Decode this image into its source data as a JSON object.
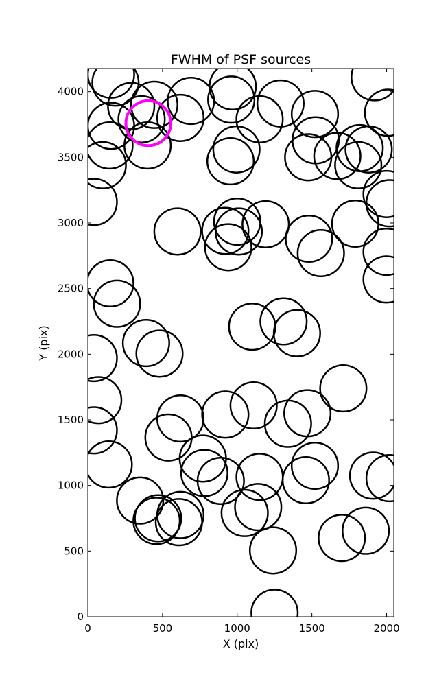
{
  "chart_data": {
    "type": "scatter",
    "title": "FWHM of PSF sources",
    "xlabel": "X (pix)",
    "ylabel": "Y (pix)",
    "xlim": [
      0,
      2048
    ],
    "ylim": [
      0,
      4176
    ],
    "xticks": [
      0,
      500,
      1000,
      1500,
      2000
    ],
    "yticks": [
      0,
      500,
      1000,
      1500,
      2000,
      2500,
      3000,
      3500,
      4000
    ],
    "grid": false,
    "marker": "open-circle",
    "circle_radius_pix": 155,
    "series": [
      {
        "name": "",
        "color": "#000000",
        "points": [
          [
            155,
            4130
          ],
          [
            185,
            4070
          ],
          [
            290,
            3890
          ],
          [
            445,
            3900
          ],
          [
            620,
            3800
          ],
          [
            690,
            3930
          ],
          [
            970,
            4040
          ],
          [
            960,
            3940
          ],
          [
            1150,
            3790
          ],
          [
            1290,
            3910
          ],
          [
            1520,
            3830
          ],
          [
            1525,
            3630
          ],
          [
            1475,
            3500
          ],
          [
            1670,
            3510
          ],
          [
            1820,
            3570
          ],
          [
            1880,
            3560
          ],
          [
            1810,
            3440
          ],
          [
            1920,
            4110
          ],
          [
            2010,
            3840
          ],
          [
            155,
            3740
          ],
          [
            145,
            3590
          ],
          [
            100,
            3440
          ],
          [
            360,
            3790
          ],
          [
            400,
            3590
          ],
          [
            995,
            3560
          ],
          [
            955,
            3470
          ],
          [
            40,
            3160
          ],
          [
            2000,
            3220
          ],
          [
            2020,
            3150
          ],
          [
            600,
            2935
          ],
          [
            920,
            2940
          ],
          [
            1000,
            3010
          ],
          [
            1010,
            2935
          ],
          [
            940,
            2815
          ],
          [
            1190,
            2990
          ],
          [
            1480,
            2880
          ],
          [
            1560,
            2770
          ],
          [
            1790,
            2995
          ],
          [
            2000,
            2780
          ],
          [
            2000,
            2570
          ],
          [
            150,
            2540
          ],
          [
            195,
            2385
          ],
          [
            1100,
            2210
          ],
          [
            1310,
            2250
          ],
          [
            1400,
            2160
          ],
          [
            390,
            2085
          ],
          [
            480,
            2005
          ],
          [
            40,
            1970
          ],
          [
            70,
            1650
          ],
          [
            1710,
            1740
          ],
          [
            920,
            1540
          ],
          [
            1110,
            1610
          ],
          [
            620,
            1510
          ],
          [
            540,
            1365
          ],
          [
            1340,
            1470
          ],
          [
            1470,
            1550
          ],
          [
            40,
            1420
          ],
          [
            140,
            1160
          ],
          [
            770,
            1205
          ],
          [
            780,
            1095
          ],
          [
            890,
            1035
          ],
          [
            1150,
            1065
          ],
          [
            1460,
            1040
          ],
          [
            1520,
            1150
          ],
          [
            1910,
            1075
          ],
          [
            2020,
            1055
          ],
          [
            350,
            885
          ],
          [
            470,
            750
          ],
          [
            460,
            730
          ],
          [
            620,
            775
          ],
          [
            610,
            720
          ],
          [
            1050,
            790
          ],
          [
            1140,
            835
          ],
          [
            1240,
            505
          ],
          [
            1700,
            600
          ],
          [
            1860,
            655
          ],
          [
            1250,
            30
          ]
        ]
      },
      {
        "name": "",
        "color": "#ff00ff",
        "points": [
          [
            405,
            3760
          ]
        ]
      }
    ]
  }
}
